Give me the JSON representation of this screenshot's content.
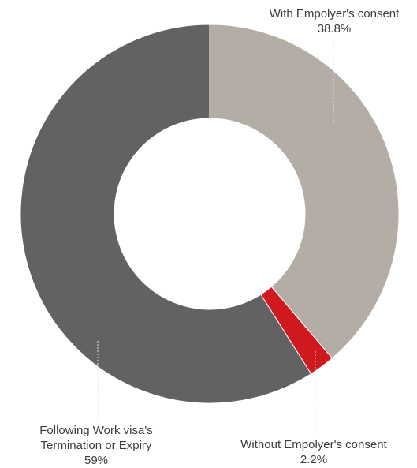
{
  "chart_data": {
    "type": "pie",
    "variant": "donut",
    "slices": [
      {
        "label": "With Empolyer's consent",
        "value": 38.8,
        "display": "38.8%",
        "color": "#b4ada6"
      },
      {
        "label": "Without Empolyer's consent",
        "value": 2.2,
        "display": "2.2%",
        "color": "#d0191f"
      },
      {
        "label": "Following Work visa's Termination or Expiry",
        "label_lines": [
          "Following Work visa's",
          "Termination or Expiry"
        ],
        "value": 59,
        "display": "59%",
        "color": "#626264"
      }
    ]
  }
}
